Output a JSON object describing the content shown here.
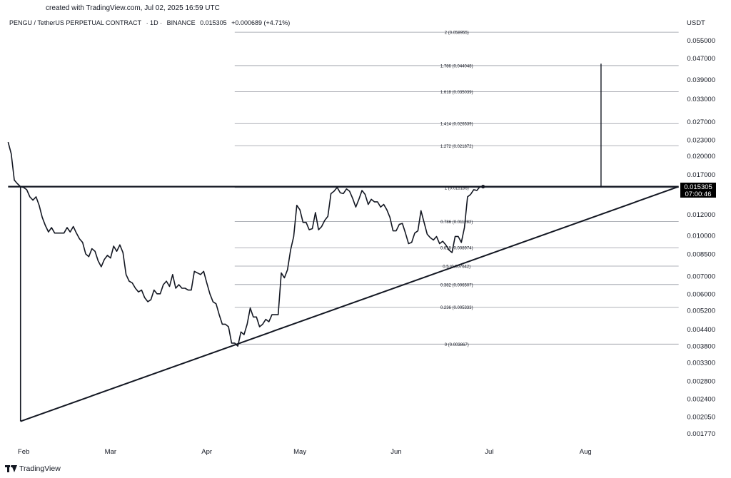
{
  "caption": "created with TradingView.com, Jul 02, 2025 16:59 UTC",
  "header": {
    "symbol": "PENGU / TetherUS PERPETUAL CONTRACT",
    "interval": "· 1D ·",
    "exchange": "BINANCE",
    "price": "0.015305",
    "change": "+0.000689 (+4.71%)"
  },
  "currency": "USDT",
  "footer": {
    "brand": "TradingView",
    "logo_icon": "tradingview-logo-icon"
  },
  "price_label": {
    "price": "0.015305",
    "countdown": "07:00:46"
  },
  "colors": {
    "line": "#131722",
    "grid": "#9598a1",
    "label_bg": "#000000",
    "label_text": "#ffffff"
  },
  "chart_data": {
    "type": "line",
    "y_scale": "log",
    "ylim": [
      0.00165,
      0.0605
    ],
    "x_axis": {
      "range": [
        "2025-01-26",
        "2025-09-01"
      ],
      "ticks": [
        {
          "date": "2025-02-01",
          "label": "Feb"
        },
        {
          "date": "2025-03-01",
          "label": "Mar"
        },
        {
          "date": "2025-04-01",
          "label": "Apr"
        },
        {
          "date": "2025-05-01",
          "label": "May"
        },
        {
          "date": "2025-06-01",
          "label": "Jun"
        },
        {
          "date": "2025-07-01",
          "label": "Jul"
        },
        {
          "date": "2025-08-01",
          "label": "Aug"
        }
      ]
    },
    "y_ticks": [
      "0.055000",
      "0.047000",
      "0.039000",
      "0.033000",
      "0.027000",
      "0.023000",
      "0.020000",
      "0.017000",
      "0.012000",
      "0.010000",
      "0.008500",
      "0.007000",
      "0.006000",
      "0.005200",
      "0.004400",
      "0.003800",
      "0.003300",
      "0.002800",
      "0.002400",
      "0.002050",
      "0.001770"
    ],
    "series": [
      {
        "style": "line",
        "points": [
          [
            "2025-01-27",
            0.0226
          ],
          [
            "2025-01-28",
            0.0204
          ],
          [
            "2025-01-29",
            0.0162
          ],
          [
            "2025-01-30",
            0.0157
          ],
          [
            "2025-01-31",
            0.0153
          ],
          [
            "2025-02-01",
            0.0152
          ],
          [
            "2025-02-02",
            0.0149
          ],
          [
            "2025-02-03",
            0.014
          ],
          [
            "2025-02-04",
            0.0136
          ],
          [
            "2025-02-05",
            0.014
          ],
          [
            "2025-02-06",
            0.013
          ],
          [
            "2025-02-07",
            0.0117
          ],
          [
            "2025-02-08",
            0.0109
          ],
          [
            "2025-02-09",
            0.0103
          ],
          [
            "2025-02-10",
            0.0107
          ],
          [
            "2025-02-11",
            0.0102
          ],
          [
            "2025-02-12",
            0.0102
          ],
          [
            "2025-02-13",
            0.0102
          ],
          [
            "2025-02-14",
            0.0102
          ],
          [
            "2025-02-15",
            0.0107
          ],
          [
            "2025-02-16",
            0.0103
          ],
          [
            "2025-02-17",
            0.0108
          ],
          [
            "2025-02-18",
            0.0102
          ],
          [
            "2025-02-19",
            0.0097
          ],
          [
            "2025-02-20",
            0.0094
          ],
          [
            "2025-02-21",
            0.0085
          ],
          [
            "2025-02-22",
            0.0083
          ],
          [
            "2025-02-23",
            0.0089
          ],
          [
            "2025-02-24",
            0.0087
          ],
          [
            "2025-02-25",
            0.008
          ],
          [
            "2025-02-26",
            0.0076
          ],
          [
            "2025-02-27",
            0.0081
          ],
          [
            "2025-02-28",
            0.0084
          ],
          [
            "2025-03-01",
            0.0082
          ],
          [
            "2025-03-02",
            0.0091
          ],
          [
            "2025-03-03",
            0.0087
          ],
          [
            "2025-03-04",
            0.0092
          ],
          [
            "2025-03-05",
            0.0086
          ],
          [
            "2025-03-06",
            0.0071
          ],
          [
            "2025-03-07",
            0.0067
          ],
          [
            "2025-03-08",
            0.0066
          ],
          [
            "2025-03-09",
            0.0063
          ],
          [
            "2025-03-10",
            0.0061
          ],
          [
            "2025-03-11",
            0.0062
          ],
          [
            "2025-03-12",
            0.0058
          ],
          [
            "2025-03-13",
            0.0056
          ],
          [
            "2025-03-14",
            0.0057
          ],
          [
            "2025-03-15",
            0.0062
          ],
          [
            "2025-03-16",
            0.006
          ],
          [
            "2025-03-17",
            0.006
          ],
          [
            "2025-03-18",
            0.0065
          ],
          [
            "2025-03-19",
            0.0067
          ],
          [
            "2025-03-20",
            0.0064
          ],
          [
            "2025-03-21",
            0.0071
          ],
          [
            "2025-03-22",
            0.0063
          ],
          [
            "2025-03-23",
            0.0065
          ],
          [
            "2025-03-24",
            0.0063
          ],
          [
            "2025-03-25",
            0.0063
          ],
          [
            "2025-03-26",
            0.0062
          ],
          [
            "2025-03-27",
            0.0062
          ],
          [
            "2025-03-28",
            0.0073
          ],
          [
            "2025-03-29",
            0.0072
          ],
          [
            "2025-03-30",
            0.0071
          ],
          [
            "2025-03-31",
            0.0073
          ],
          [
            "2025-04-01",
            0.0066
          ],
          [
            "2025-04-02",
            0.006
          ],
          [
            "2025-04-03",
            0.0056
          ],
          [
            "2025-04-04",
            0.0055
          ],
          [
            "2025-04-05",
            0.005
          ],
          [
            "2025-04-06",
            0.0046
          ],
          [
            "2025-04-07",
            0.0046
          ],
          [
            "2025-04-08",
            0.0045
          ],
          [
            "2025-04-09",
            0.0039
          ],
          [
            "2025-04-10",
            0.0039
          ],
          [
            "2025-04-11",
            0.0038
          ],
          [
            "2025-04-12",
            0.0043
          ],
          [
            "2025-04-13",
            0.0042
          ],
          [
            "2025-04-14",
            0.0046
          ],
          [
            "2025-04-15",
            0.0053
          ],
          [
            "2025-04-16",
            0.0049
          ],
          [
            "2025-04-17",
            0.0049
          ],
          [
            "2025-04-18",
            0.0045
          ],
          [
            "2025-04-19",
            0.0046
          ],
          [
            "2025-04-20",
            0.0048
          ],
          [
            "2025-04-21",
            0.0047
          ],
          [
            "2025-04-22",
            0.005
          ],
          [
            "2025-04-23",
            0.005
          ],
          [
            "2025-04-24",
            0.005
          ],
          [
            "2025-04-25",
            0.0072
          ],
          [
            "2025-04-26",
            0.0069
          ],
          [
            "2025-04-27",
            0.0074
          ],
          [
            "2025-04-28",
            0.0088
          ],
          [
            "2025-04-29",
            0.0099
          ],
          [
            "2025-04-30",
            0.013
          ],
          [
            "2025-05-01",
            0.0125
          ],
          [
            "2025-05-02",
            0.0112
          ],
          [
            "2025-05-03",
            0.0112
          ],
          [
            "2025-05-04",
            0.0105
          ],
          [
            "2025-05-05",
            0.0106
          ],
          [
            "2025-05-06",
            0.0122
          ],
          [
            "2025-05-07",
            0.0105
          ],
          [
            "2025-05-08",
            0.0108
          ],
          [
            "2025-05-09",
            0.0114
          ],
          [
            "2025-05-10",
            0.0118
          ],
          [
            "2025-05-11",
            0.0144
          ],
          [
            "2025-05-12",
            0.0147
          ],
          [
            "2025-05-13",
            0.0152
          ],
          [
            "2025-05-14",
            0.0145
          ],
          [
            "2025-05-15",
            0.0144
          ],
          [
            "2025-05-16",
            0.015
          ],
          [
            "2025-05-17",
            0.0147
          ],
          [
            "2025-05-18",
            0.0138
          ],
          [
            "2025-05-19",
            0.0128
          ],
          [
            "2025-05-20",
            0.0137
          ],
          [
            "2025-05-21",
            0.0148
          ],
          [
            "2025-05-22",
            0.0143
          ],
          [
            "2025-05-23",
            0.0131
          ],
          [
            "2025-05-24",
            0.0137
          ],
          [
            "2025-05-25",
            0.0134
          ],
          [
            "2025-05-26",
            0.0134
          ],
          [
            "2025-05-27",
            0.0128
          ],
          [
            "2025-05-28",
            0.0131
          ],
          [
            "2025-05-29",
            0.0125
          ],
          [
            "2025-05-30",
            0.0117
          ],
          [
            "2025-05-31",
            0.0104
          ],
          [
            "2025-06-01",
            0.0104
          ],
          [
            "2025-06-02",
            0.011
          ],
          [
            "2025-06-03",
            0.0111
          ],
          [
            "2025-06-04",
            0.0102
          ],
          [
            "2025-06-05",
            0.0093
          ],
          [
            "2025-06-06",
            0.0094
          ],
          [
            "2025-06-07",
            0.0102
          ],
          [
            "2025-06-08",
            0.0104
          ],
          [
            "2025-06-09",
            0.0124
          ],
          [
            "2025-06-10",
            0.0112
          ],
          [
            "2025-06-11",
            0.0101
          ],
          [
            "2025-06-12",
            0.0098
          ],
          [
            "2025-06-13",
            0.0096
          ],
          [
            "2025-06-14",
            0.0099
          ],
          [
            "2025-06-15",
            0.0093
          ],
          [
            "2025-06-16",
            0.0095
          ],
          [
            "2025-06-17",
            0.0092
          ],
          [
            "2025-06-18",
            0.0088
          ],
          [
            "2025-06-19",
            0.0086
          ],
          [
            "2025-06-20",
            0.0099
          ],
          [
            "2025-06-21",
            0.0099
          ],
          [
            "2025-06-22",
            0.0094
          ],
          [
            "2025-06-23",
            0.0107
          ],
          [
            "2025-06-24",
            0.014
          ],
          [
            "2025-06-25",
            0.0143
          ],
          [
            "2025-06-26",
            0.0149
          ],
          [
            "2025-06-27",
            0.0148
          ],
          [
            "2025-06-28",
            0.0153
          ]
        ]
      }
    ],
    "last_point": {
      "date": "2025-06-29",
      "value": 0.015305
    },
    "fibonacci": [
      {
        "label": "2 (0.058955)",
        "value": 0.058955
      },
      {
        "label": "1.786 (0.044048)",
        "value": 0.044048
      },
      {
        "label": "1.618 (0.035039)",
        "value": 0.035039
      },
      {
        "label": "1.414 (0.026539)",
        "value": 0.026539
      },
      {
        "label": "1.272 (0.021872)",
        "value": 0.021872
      },
      {
        "label": "1 (0.015186)",
        "value": 0.015186
      },
      {
        "label": "0.786 (0.011282)",
        "value": 0.011282
      },
      {
        "label": "0.618 (0.008974)",
        "value": 0.008974
      },
      {
        "label": "0.5 (0.007642)",
        "value": 0.007642
      },
      {
        "label": "0.382 (0.006507)",
        "value": 0.006507
      },
      {
        "label": "0.236 (0.005333)",
        "value": 0.005333
      },
      {
        "label": "0 (0.003867)",
        "value": 0.003867
      }
    ],
    "fib_range": [
      "2025-04-10",
      "2025-08-31"
    ],
    "drawings": {
      "resistance": {
        "from": [
          "2025-01-27",
          0.0153
        ],
        "to": [
          "2025-08-31",
          0.0153
        ]
      },
      "support": {
        "from": [
          "2025-01-31",
          0.00197
        ],
        "to": [
          "2025-08-31",
          0.0153
        ]
      },
      "left_edge": {
        "from": [
          "2025-01-31",
          0.0153
        ],
        "to": [
          "2025-01-31",
          0.00197
        ]
      },
      "target": {
        "from": [
          "2025-08-06",
          0.0152
        ],
        "to": [
          "2025-08-06",
          0.0448
        ]
      }
    }
  }
}
